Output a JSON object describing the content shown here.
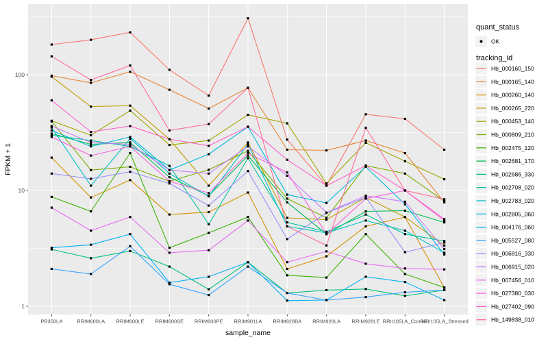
{
  "chart_data": {
    "type": "line",
    "title": "",
    "xlabel": "sample_name",
    "ylabel": "FPKM + 1",
    "y_scale": "log10",
    "y_ticks": [
      1,
      10,
      100
    ],
    "y_tick_labels": [
      "1",
      "10",
      "100"
    ],
    "y_minor_ticks": [
      3.162,
      31.62,
      316.2
    ],
    "ylim": [
      0.85,
      385
    ],
    "grid": "on",
    "marker": "black-square",
    "categories": [
      "PB350LA",
      "RRIM600LA",
      "RRIM600LE",
      "RRIM600SE",
      "RRIM600PE",
      "RRIM901LA",
      "RRIM928BA",
      "RRIM928LA",
      "RRIM928LE",
      "RRII105LA_Control",
      "RRII105LA_Stressed"
    ],
    "series": [
      {
        "name": "Hb_000160_150",
        "color": "#F8766D",
        "values": [
          182,
          200,
          232,
          110,
          66,
          307,
          27.5,
          11,
          45.5,
          41.5,
          22.5
        ]
      },
      {
        "name": "Hb_000165_140",
        "color": "#EA8331",
        "values": [
          98,
          85,
          106,
          74,
          51,
          77,
          22.5,
          22.2,
          27,
          21,
          7.9
        ]
      },
      {
        "name": "Hb_000260_140",
        "color": "#D89000",
        "values": [
          19.2,
          8.7,
          12.3,
          6.2,
          6.5,
          9.6,
          2.1,
          2.7,
          4.9,
          5.9,
          1.45
        ]
      },
      {
        "name": "Hb_000265_220",
        "color": "#C09B00",
        "values": [
          96,
          53,
          54,
          27.7,
          11,
          26,
          5.8,
          5.6,
          8.7,
          5.9,
          3.35
        ]
      },
      {
        "name": "Hb_000453_140",
        "color": "#A3A500",
        "values": [
          40,
          30,
          49,
          24.7,
          27,
          45,
          38,
          11.5,
          25.8,
          17.9,
          12.5
        ]
      },
      {
        "name": "Hb_000809_210",
        "color": "#7CAE00",
        "values": [
          39.5,
          15,
          16,
          12,
          15.1,
          22,
          8.5,
          5.8,
          16.4,
          14,
          8.1
        ]
      },
      {
        "name": "Hb_002475_120",
        "color": "#39B600",
        "values": [
          8.8,
          6.6,
          21,
          3.2,
          4.3,
          5.9,
          1.85,
          1.77,
          4.2,
          1.9,
          1.45
        ]
      },
      {
        "name": "Hb_002681_170",
        "color": "#00BB4E",
        "values": [
          31,
          25,
          26,
          13,
          9,
          20,
          7.9,
          4.2,
          6.6,
          6.7,
          5.3
        ]
      },
      {
        "name": "Hb_002686_330",
        "color": "#00C078",
        "values": [
          3.1,
          2.6,
          3.0,
          2.2,
          1.4,
          2.4,
          1.3,
          1.38,
          1.41,
          1.23,
          1.38
        ]
      },
      {
        "name": "Hb_002708_020",
        "color": "#00C19A",
        "values": [
          30,
          27,
          24,
          16.3,
          5.1,
          19,
          5.3,
          4.4,
          6.2,
          4.2,
          3.66
        ]
      },
      {
        "name": "Hb_002783_020",
        "color": "#00BFC4",
        "values": [
          35,
          11,
          28,
          14,
          8.9,
          25,
          4.9,
          4.3,
          5.5,
          4.5,
          2.9
        ]
      },
      {
        "name": "Hb_002805_060",
        "color": "#00BAE0",
        "values": [
          33,
          24,
          29,
          15,
          20.6,
          35.5,
          9.2,
          7.8,
          16,
          7.6,
          2.8
        ]
      },
      {
        "name": "Hb_004176_060",
        "color": "#00B0F6",
        "values": [
          3.2,
          3.4,
          4.2,
          1.6,
          1.8,
          2.4,
          1.12,
          1.13,
          1.8,
          1.62,
          1.13
        ]
      },
      {
        "name": "Hb_005527_080",
        "color": "#35A2FF",
        "values": [
          2.1,
          1.9,
          3.3,
          1.55,
          1.25,
          2.2,
          1.3,
          1.13,
          1.2,
          1.32,
          1.38
        ]
      },
      {
        "name": "Hb_006816_330",
        "color": "#9590FF",
        "values": [
          14,
          12.6,
          14.5,
          11.5,
          7.4,
          14.7,
          3.8,
          6.4,
          8.7,
          2.93,
          3.55
        ]
      },
      {
        "name": "Hb_006915_020",
        "color": "#C77CFF",
        "values": [
          36,
          26,
          25,
          15,
          14,
          24,
          13.4,
          6.45,
          9,
          8,
          3.12
        ]
      },
      {
        "name": "Hb_007456_010",
        "color": "#E76BF3",
        "values": [
          7.1,
          4.5,
          5.9,
          2.9,
          3.05,
          5.5,
          2.4,
          2.98,
          2.33,
          2.12,
          2.08
        ]
      },
      {
        "name": "Hb_027380_030",
        "color": "#FA62DB",
        "values": [
          29,
          20,
          24,
          12,
          9.5,
          21,
          14.3,
          4.2,
          8.5,
          10,
          5.65
        ]
      },
      {
        "name": "Hb_027402_090",
        "color": "#FF61CC",
        "values": [
          60,
          32,
          36,
          27.7,
          24.3,
          35.5,
          18.4,
          11,
          16.4,
          10,
          5.5
        ]
      },
      {
        "name": "Hb_149838_010",
        "color": "#FF6A98",
        "values": [
          144,
          90,
          120,
          33,
          37.5,
          77,
          4.9,
          3.35,
          34.8,
          10,
          8.4
        ]
      }
    ],
    "legend": {
      "position": "right",
      "quant_status_title": "quant_status",
      "quant_status_items": [
        {
          "label": "OK",
          "marker": "black-point"
        }
      ],
      "tracking_id_title": "tracking_id"
    }
  },
  "colors": {
    "panel_background": "#EBEBEB",
    "grid_major": "#FFFFFF",
    "grid_minor": "#F7F7F7",
    "axis_text": "#4D4D4D",
    "title_text": "#000000",
    "marker": "#000000",
    "legend_key_background": "#F2F2F2"
  }
}
